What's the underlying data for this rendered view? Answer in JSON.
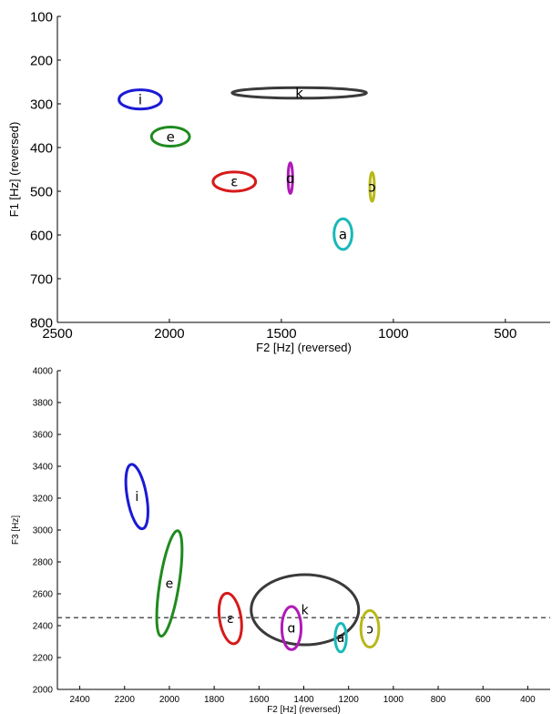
{
  "chart_data": [
    {
      "type": "scatter",
      "subtype": "ellipse-plot",
      "xlabel": "F2 [Hz] (reversed)",
      "ylabel": "F1 [Hz] (reversed)",
      "xlim": [
        2500,
        300
      ],
      "ylim": [
        800,
        100
      ],
      "x_reversed": true,
      "y_reversed": true,
      "xticks": [
        2500,
        2000,
        1500,
        1000,
        500
      ],
      "yticks": [
        100,
        200,
        300,
        400,
        500,
        600,
        700,
        800
      ],
      "grid": false,
      "ellipses": [
        {
          "label": "i",
          "color": "#1a1ad6",
          "cx": 2130,
          "cy": 290,
          "rx": 95,
          "ry": 22,
          "angle": 0
        },
        {
          "label": "k",
          "color": "#3a3a3a",
          "cx": 1420,
          "cy": 275,
          "rx": 300,
          "ry": 12,
          "angle": 0
        },
        {
          "label": "e",
          "color": "#1f8a1f",
          "cx": 1995,
          "cy": 375,
          "rx": 85,
          "ry": 22,
          "angle": 0
        },
        {
          "label": "ε",
          "color": "#d61a1a",
          "cx": 1710,
          "cy": 478,
          "rx": 95,
          "ry": 22,
          "angle": 0
        },
        {
          "label": "ɑ",
          "color": "#b01ab8",
          "cx": 1460,
          "cy": 470,
          "rx": 10,
          "ry": 35,
          "angle": 0
        },
        {
          "label": "ɔ",
          "color": "#b8b81a",
          "cx": 1095,
          "cy": 490,
          "rx": 10,
          "ry": 33,
          "angle": 0
        },
        {
          "label": "a",
          "color": "#1ab8b8",
          "cx": 1225,
          "cy": 598,
          "rx": 40,
          "ry": 35,
          "angle": 0
        }
      ]
    },
    {
      "type": "scatter",
      "subtype": "ellipse-plot",
      "xlabel": "F2 [Hz] (reversed)",
      "ylabel": "F3 [Hz]",
      "xlim": [
        2500,
        300
      ],
      "ylim": [
        2000,
        4000
      ],
      "x_reversed": true,
      "xticks": [
        2400,
        2200,
        2000,
        1800,
        1600,
        1400,
        1200,
        1000,
        800,
        600,
        400
      ],
      "yticks": [
        2000,
        2200,
        2400,
        2600,
        2800,
        3000,
        3200,
        3400,
        3600,
        3800,
        4000
      ],
      "grid": false,
      "reference_line": {
        "y": 2450,
        "style": "dashed",
        "color": "#555555"
      },
      "ellipses": [
        {
          "label": "i",
          "color": "#1a1ad6",
          "cx": 2145,
          "cy": 3210,
          "rx": 43,
          "ry": 205,
          "angle": -10
        },
        {
          "label": "e",
          "color": "#1f8a1f",
          "cx": 2000,
          "cy": 2665,
          "rx": 43,
          "ry": 335,
          "angle": 9
        },
        {
          "label": "ε",
          "color": "#d61a1a",
          "cx": 1728,
          "cy": 2445,
          "rx": 48,
          "ry": 160,
          "angle": -9
        },
        {
          "label": "k",
          "color": "#3a3a3a",
          "cx": 1395,
          "cy": 2500,
          "rx": 240,
          "ry": 220,
          "angle": 0
        },
        {
          "label": "ɑ",
          "color": "#b01ab8",
          "cx": 1455,
          "cy": 2385,
          "rx": 43,
          "ry": 135,
          "angle": 0
        },
        {
          "label": "a",
          "color": "#1ab8b8",
          "cx": 1235,
          "cy": 2325,
          "rx": 25,
          "ry": 90,
          "angle": 0
        },
        {
          "label": "ɔ",
          "color": "#b8b81a",
          "cx": 1105,
          "cy": 2380,
          "rx": 40,
          "ry": 115,
          "angle": 0
        }
      ]
    }
  ]
}
